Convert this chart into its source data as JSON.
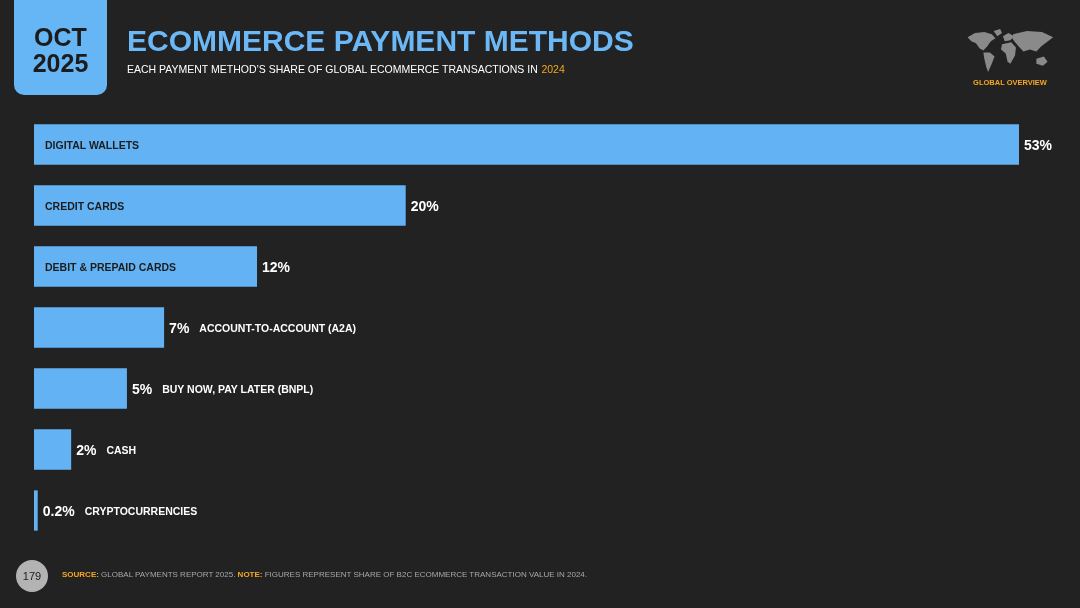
{
  "chart_data": {
    "type": "bar",
    "orientation": "horizontal",
    "title": "ECOMMERCE PAYMENT METHODS",
    "subtitle": "EACH PAYMENT METHOD’S SHARE OF GLOBAL ECOMMERCE TRANSACTIONS IN 2024",
    "categories": [
      "DIGITAL WALLETS",
      "CREDIT CARDS",
      "DEBIT & PREPAID CARDS",
      "ACCOUNT-TO-ACCOUNT (A2A)",
      "BUY NOW, PAY LATER (BNPL)",
      "CASH",
      "CRYPTOCURRENCIES"
    ],
    "values": [
      53,
      20,
      12,
      7,
      5,
      2,
      0.2
    ],
    "value_labels": [
      "53%",
      "20%",
      "12%",
      "7%",
      "5%",
      "2%",
      "0.2%"
    ],
    "color": "#63b3f4",
    "tick_labels": "y",
    "annotations": [
      "OCT 2025",
      "GLOBAL OVERVIEW",
      "SOURCE: GLOBAL PAYMENTS REPORT 2025. NOTE: FIGURES REPRESENT SHARE OF B2C ECOMMERCE TRANSACTION VALUE IN 2024.",
      "179"
    ]
  }
}
